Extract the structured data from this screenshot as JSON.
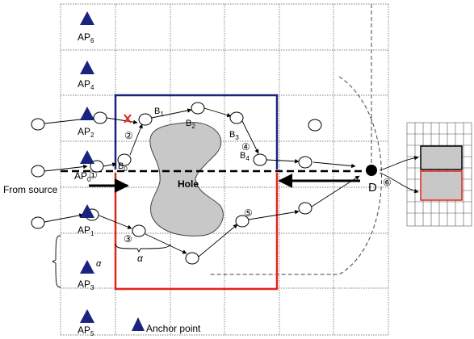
{
  "anchors": [
    {
      "label": "AP",
      "sub": "6"
    },
    {
      "label": "AP",
      "sub": "4"
    },
    {
      "label": "AP",
      "sub": "2"
    },
    {
      "label": "AP",
      "sub": "0"
    },
    {
      "label": "AP",
      "sub": "1"
    },
    {
      "label": "AP",
      "sub": "3"
    },
    {
      "label": "AP",
      "sub": "5"
    }
  ],
  "nodes": {
    "b0": {
      "label": "B",
      "sub": "0"
    },
    "b1": {
      "label": "B",
      "sub": "1"
    },
    "b2": {
      "label": "B",
      "sub": "2"
    },
    "b3": {
      "label": "B",
      "sub": "3"
    },
    "b4": {
      "label": "B",
      "sub": "4"
    },
    "dest": "D"
  },
  "steps": [
    "①",
    "②",
    "③",
    "④",
    "⑤",
    "⑥"
  ],
  "hole_label": "Hole",
  "source_label": "From source",
  "alpha_label": "α",
  "legend_label": "Anchor point",
  "colors": {
    "blue_region": "#1a237e",
    "red_region": "#e8231a",
    "hole_fill": "#c8c8c8",
    "anchor": "#1a237e",
    "fail_mark": "#e8231a"
  }
}
